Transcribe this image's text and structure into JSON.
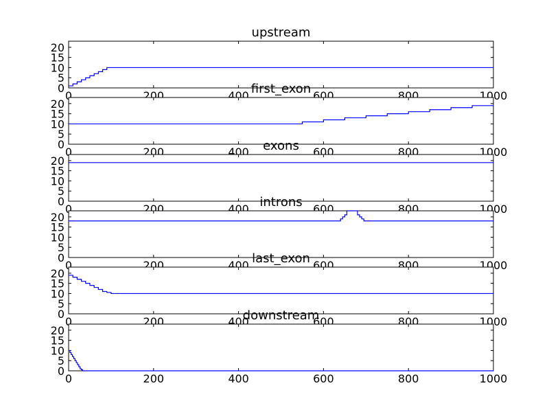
{
  "chart_data": [
    {
      "type": "line",
      "title": "upstream",
      "xlim": [
        0,
        1000
      ],
      "ylim": [
        0,
        23
      ],
      "xticks": [
        0,
        200,
        400,
        600,
        800,
        1000
      ],
      "yticks": [
        0,
        5,
        10,
        15,
        20
      ],
      "color": "#0000ff",
      "step": true,
      "series": [
        {
          "x": [
            0,
            10,
            10,
            20,
            20,
            30,
            30,
            40,
            40,
            50,
            50,
            60,
            60,
            70,
            70,
            80,
            80,
            90,
            90,
            1000
          ],
          "y": [
            1,
            1,
            2,
            2,
            3,
            3,
            4,
            4,
            5,
            5,
            6,
            6,
            7,
            7,
            8,
            8,
            9,
            9,
            10,
            10
          ]
        }
      ]
    },
    {
      "type": "line",
      "title": "first_exon",
      "xlim": [
        0,
        1000
      ],
      "ylim": [
        0,
        23
      ],
      "xticks": [
        0,
        200,
        400,
        600,
        800,
        1000
      ],
      "yticks": [
        0,
        5,
        10,
        15,
        20
      ],
      "color": "#0000ff",
      "step": true,
      "series": [
        {
          "x": [
            0,
            550,
            550,
            600,
            600,
            650,
            650,
            700,
            700,
            750,
            750,
            800,
            800,
            850,
            850,
            900,
            900,
            950,
            950,
            1000
          ],
          "y": [
            10,
            10,
            11,
            11,
            12,
            12,
            13,
            13,
            14,
            14,
            15,
            15,
            16,
            16,
            17,
            17,
            18,
            18,
            19,
            19
          ]
        }
      ]
    },
    {
      "type": "line",
      "title": "exons",
      "xlim": [
        0,
        1000
      ],
      "ylim": [
        0,
        23
      ],
      "xticks": [
        0,
        200,
        400,
        600,
        800,
        1000
      ],
      "yticks": [
        0,
        5,
        10,
        15,
        20
      ],
      "color": "#0000ff",
      "step": true,
      "series": [
        {
          "x": [
            0,
            1000
          ],
          "y": [
            19,
            19
          ]
        }
      ]
    },
    {
      "type": "line",
      "title": "introns",
      "xlim": [
        0,
        1000
      ],
      "ylim": [
        0,
        23
      ],
      "xticks": [
        0,
        200,
        400,
        600,
        800,
        1000
      ],
      "yticks": [
        0,
        5,
        10,
        15,
        20
      ],
      "color": "#0000ff",
      "step": true,
      "series": [
        {
          "x": [
            0,
            640,
            640,
            645,
            645,
            650,
            650,
            655,
            655,
            660,
            660,
            680,
            680,
            685,
            685,
            690,
            690,
            695,
            695,
            1000
          ],
          "y": [
            18,
            18,
            19,
            19,
            20,
            20,
            21,
            21,
            23,
            23,
            23,
            23,
            21,
            21,
            20,
            20,
            19,
            19,
            18,
            18
          ]
        }
      ]
    },
    {
      "type": "line",
      "title": "last_exon",
      "xlim": [
        0,
        1000
      ],
      "ylim": [
        0,
        23
      ],
      "xticks": [
        0,
        200,
        400,
        600,
        800,
        1000
      ],
      "yticks": [
        0,
        5,
        10,
        15,
        20
      ],
      "color": "#0000ff",
      "step": true,
      "series": [
        {
          "x": [
            0,
            10,
            10,
            20,
            20,
            30,
            30,
            40,
            40,
            50,
            50,
            60,
            60,
            70,
            70,
            80,
            80,
            90,
            90,
            100,
            100,
            1000
          ],
          "y": [
            19,
            19,
            18,
            18,
            17,
            17,
            16,
            16,
            15,
            15,
            14,
            14,
            13,
            13,
            12,
            12,
            11,
            11,
            10.5,
            10.5,
            10,
            10
          ]
        }
      ]
    },
    {
      "type": "line",
      "title": "downstream",
      "xlim": [
        0,
        1000
      ],
      "ylim": [
        0,
        23
      ],
      "xticks": [
        0,
        200,
        400,
        600,
        800,
        1000
      ],
      "yticks": [
        0,
        5,
        10,
        15,
        20
      ],
      "color": "#0000ff",
      "step": true,
      "series": [
        {
          "x": [
            0,
            3,
            3,
            6,
            6,
            9,
            9,
            12,
            12,
            15,
            15,
            18,
            18,
            21,
            21,
            24,
            24,
            27,
            27,
            30,
            30,
            33,
            33,
            36,
            36,
            1000
          ],
          "y": [
            10,
            10,
            9,
            9,
            8,
            8,
            7,
            7,
            6,
            6,
            5,
            5,
            4,
            4,
            3,
            3,
            2,
            2,
            1,
            1,
            0.5,
            0.5,
            0,
            0,
            0,
            0
          ]
        }
      ]
    }
  ]
}
